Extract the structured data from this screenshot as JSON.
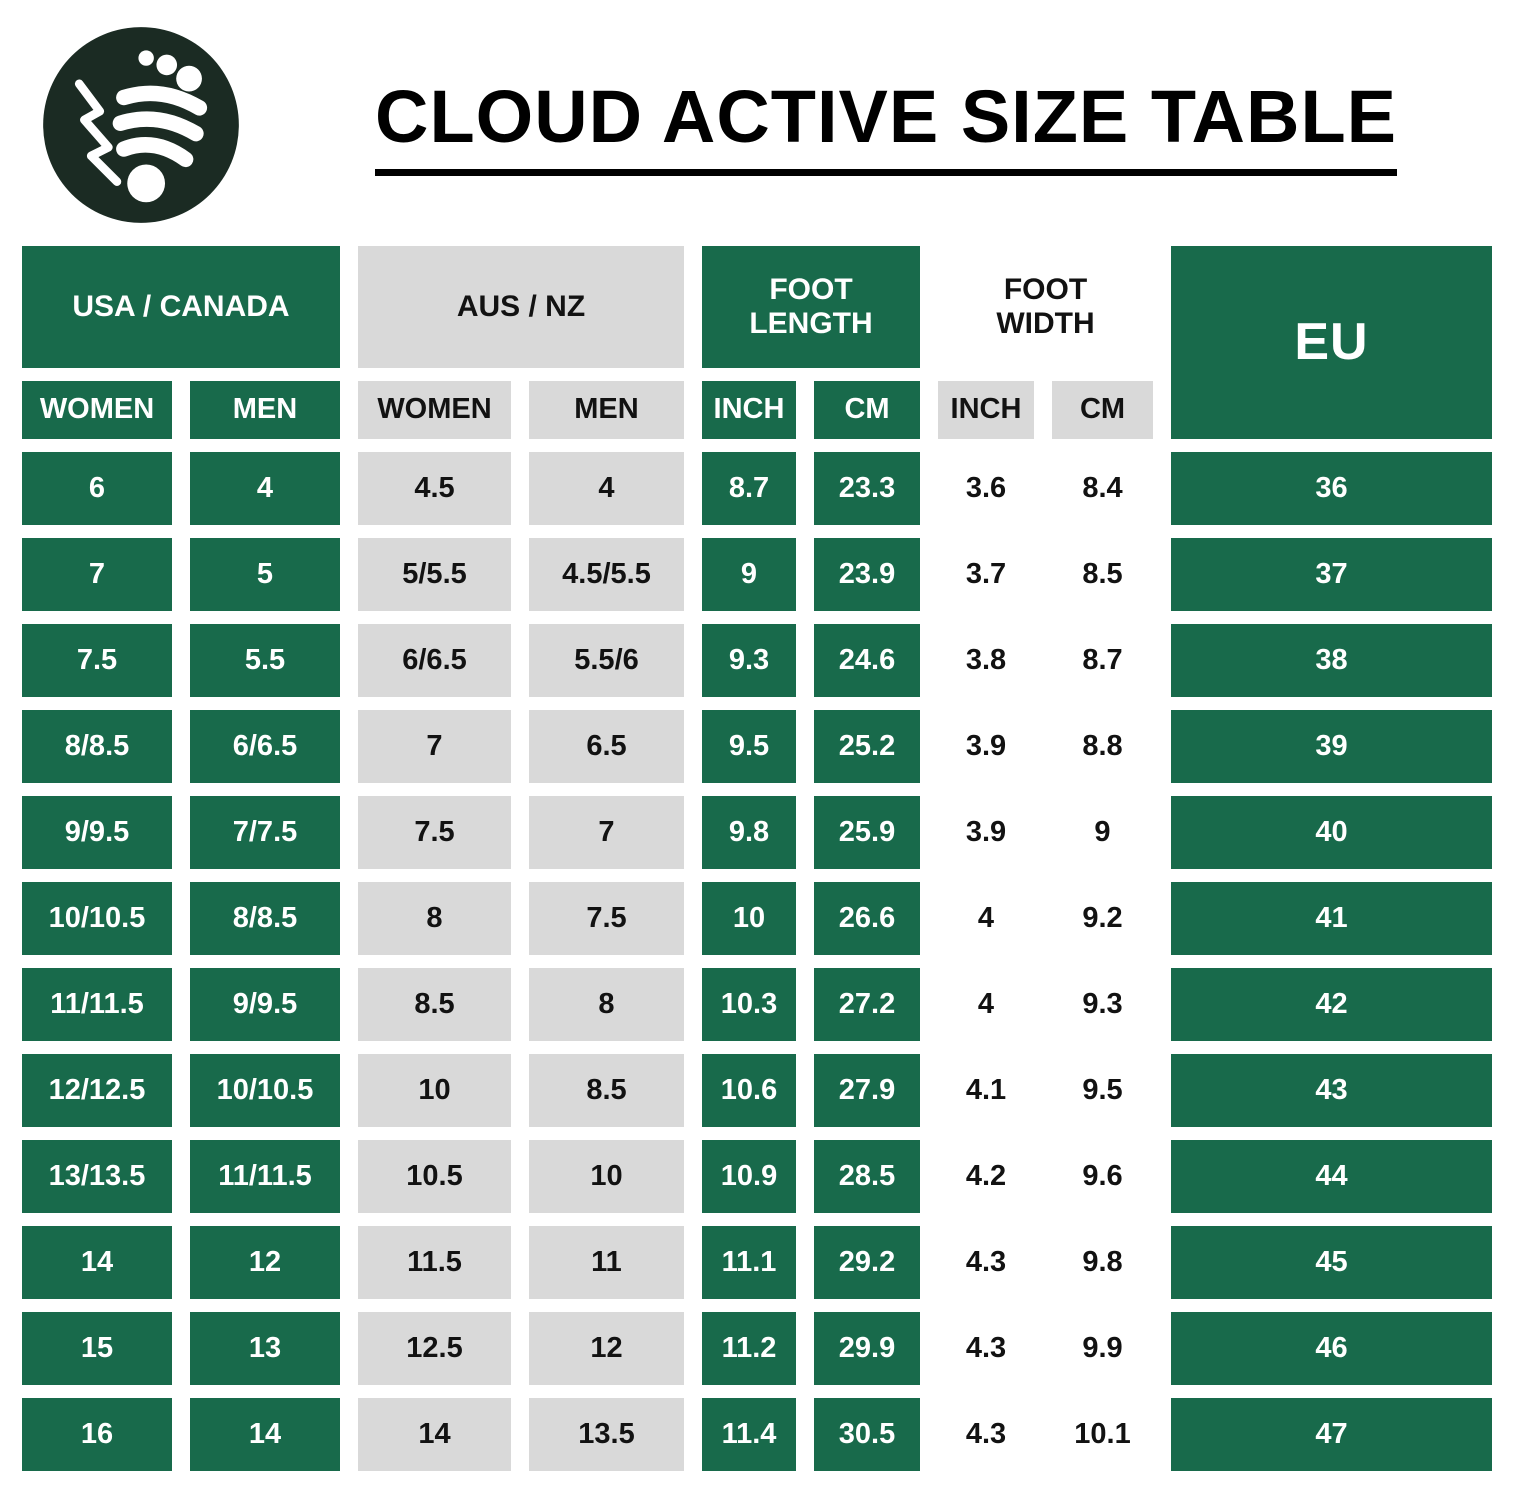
{
  "colors": {
    "green": "#186A4B",
    "gray": "#D9D9D9",
    "logo_dark": "#1B2B23",
    "ink": "#111111"
  },
  "logo": {
    "icon": "barefoot-mountain-logo"
  },
  "chart_data": {
    "type": "table",
    "title": "CLOUD ACTIVE SIZE TABLE",
    "column_groups": [
      {
        "label": "USA / CANADA",
        "style": "green",
        "columns": [
          "WOMEN",
          "MEN"
        ]
      },
      {
        "label": "AUS / NZ",
        "style": "gray",
        "columns": [
          "WOMEN",
          "MEN"
        ]
      },
      {
        "label": "FOOT LENGTH",
        "style": "green",
        "columns": [
          "INCH",
          "CM"
        ]
      },
      {
        "label": "FOOT WIDTH",
        "style": "white",
        "columns": [
          "INCH",
          "CM"
        ]
      },
      {
        "label": "EU",
        "style": "green",
        "columns": []
      }
    ],
    "rows": [
      [
        "6",
        "4",
        "4.5",
        "4",
        "8.7",
        "23.3",
        "3.6",
        "8.4",
        "36"
      ],
      [
        "7",
        "5",
        "5/5.5",
        "4.5/5.5",
        "9",
        "23.9",
        "3.7",
        "8.5",
        "37"
      ],
      [
        "7.5",
        "5.5",
        "6/6.5",
        "5.5/6",
        "9.3",
        "24.6",
        "3.8",
        "8.7",
        "38"
      ],
      [
        "8/8.5",
        "6/6.5",
        "7",
        "6.5",
        "9.5",
        "25.2",
        "3.9",
        "8.8",
        "39"
      ],
      [
        "9/9.5",
        "7/7.5",
        "7.5",
        "7",
        "9.8",
        "25.9",
        "3.9",
        "9",
        "40"
      ],
      [
        "10/10.5",
        "8/8.5",
        "8",
        "7.5",
        "10",
        "26.6",
        "4",
        "9.2",
        "41"
      ],
      [
        "11/11.5",
        "9/9.5",
        "8.5",
        "8",
        "10.3",
        "27.2",
        "4",
        "9.3",
        "42"
      ],
      [
        "12/12.5",
        "10/10.5",
        "10",
        "8.5",
        "10.6",
        "27.9",
        "4.1",
        "9.5",
        "43"
      ],
      [
        "13/13.5",
        "11/11.5",
        "10.5",
        "10",
        "10.9",
        "28.5",
        "4.2",
        "9.6",
        "44"
      ],
      [
        "14",
        "12",
        "11.5",
        "11",
        "11.1",
        "29.2",
        "4.3",
        "9.8",
        "45"
      ],
      [
        "15",
        "13",
        "12.5",
        "12",
        "11.2",
        "29.9",
        "4.3",
        "9.9",
        "46"
      ],
      [
        "16",
        "14",
        "14",
        "13.5",
        "11.4",
        "30.5",
        "4.3",
        "10.1",
        "47"
      ]
    ]
  }
}
